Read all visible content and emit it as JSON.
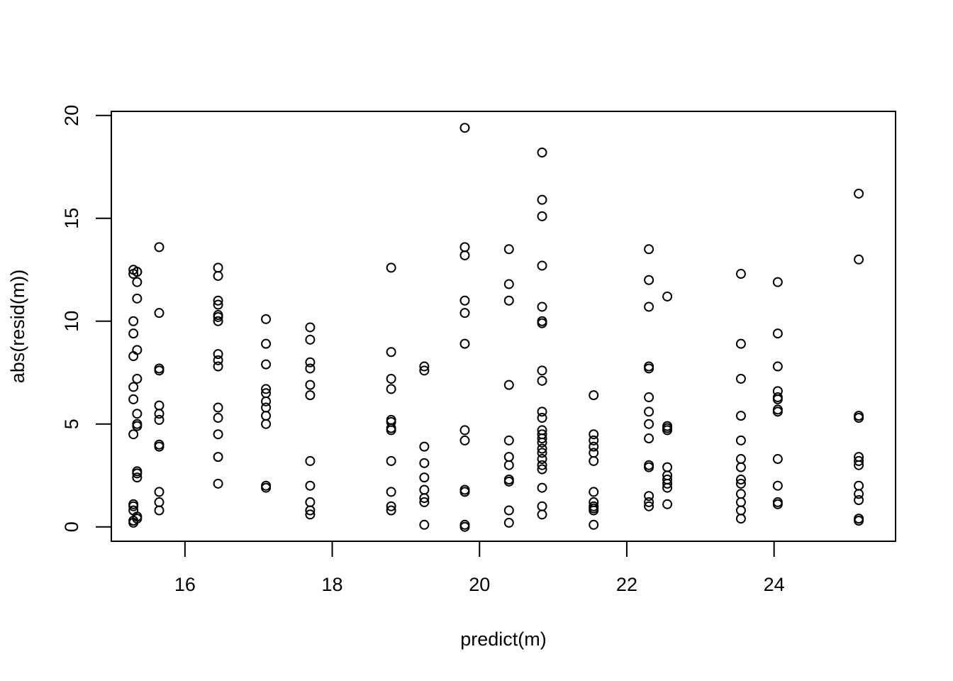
{
  "chart_data": {
    "type": "scatter",
    "xlabel": "predict(m)",
    "ylabel": "abs(resid(m))",
    "xlim": [
      15,
      25.65
    ],
    "ylim": [
      -0.7,
      20.2
    ],
    "x_ticks": [
      16,
      18,
      20,
      22,
      24
    ],
    "y_ticks": [
      0,
      5,
      10,
      15,
      20
    ],
    "grid": false,
    "legend": "none",
    "marker": "open-circle",
    "point_color": "#000000",
    "points": [
      [
        15.3,
        12.5
      ],
      [
        15.3,
        12.3
      ],
      [
        15.3,
        10.0
      ],
      [
        15.3,
        9.4
      ],
      [
        15.3,
        8.3
      ],
      [
        15.3,
        6.8
      ],
      [
        15.3,
        6.2
      ],
      [
        15.3,
        4.5
      ],
      [
        15.3,
        1.1
      ],
      [
        15.3,
        1.0
      ],
      [
        15.3,
        0.8
      ],
      [
        15.3,
        0.3
      ],
      [
        15.3,
        0.2
      ],
      [
        15.35,
        12.4
      ],
      [
        15.35,
        12.4
      ],
      [
        15.35,
        11.9
      ],
      [
        15.35,
        11.1
      ],
      [
        15.35,
        8.6
      ],
      [
        15.35,
        7.2
      ],
      [
        15.35,
        5.5
      ],
      [
        15.35,
        5.0
      ],
      [
        15.35,
        4.9
      ],
      [
        15.35,
        2.7
      ],
      [
        15.35,
        2.6
      ],
      [
        15.35,
        2.4
      ],
      [
        15.35,
        0.5
      ],
      [
        15.35,
        0.4
      ],
      [
        15.65,
        13.6
      ],
      [
        15.65,
        10.4
      ],
      [
        15.65,
        7.7
      ],
      [
        15.65,
        7.6
      ],
      [
        15.65,
        5.9
      ],
      [
        15.65,
        5.5
      ],
      [
        15.65,
        5.2
      ],
      [
        15.65,
        4.0
      ],
      [
        15.65,
        3.9
      ],
      [
        15.65,
        1.7
      ],
      [
        15.65,
        1.2
      ],
      [
        15.65,
        0.8
      ],
      [
        16.45,
        12.6
      ],
      [
        16.45,
        12.2
      ],
      [
        16.45,
        11.0
      ],
      [
        16.45,
        10.8
      ],
      [
        16.45,
        10.3
      ],
      [
        16.45,
        10.2
      ],
      [
        16.45,
        10.0
      ],
      [
        16.45,
        8.4
      ],
      [
        16.45,
        8.1
      ],
      [
        16.45,
        7.8
      ],
      [
        16.45,
        5.8
      ],
      [
        16.45,
        5.3
      ],
      [
        16.45,
        4.5
      ],
      [
        16.45,
        3.4
      ],
      [
        16.45,
        2.1
      ],
      [
        17.1,
        10.1
      ],
      [
        17.1,
        8.9
      ],
      [
        17.1,
        7.9
      ],
      [
        17.1,
        6.7
      ],
      [
        17.1,
        6.5
      ],
      [
        17.1,
        6.1
      ],
      [
        17.1,
        5.8
      ],
      [
        17.1,
        5.4
      ],
      [
        17.1,
        5.0
      ],
      [
        17.1,
        2.0
      ],
      [
        17.1,
        1.9
      ],
      [
        17.7,
        9.7
      ],
      [
        17.7,
        9.1
      ],
      [
        17.7,
        8.0
      ],
      [
        17.7,
        7.7
      ],
      [
        17.7,
        6.9
      ],
      [
        17.7,
        6.4
      ],
      [
        17.7,
        3.2
      ],
      [
        17.7,
        2.0
      ],
      [
        17.7,
        1.2
      ],
      [
        17.7,
        0.8
      ],
      [
        17.7,
        0.6
      ],
      [
        18.8,
        12.6
      ],
      [
        18.8,
        8.5
      ],
      [
        18.8,
        7.2
      ],
      [
        18.8,
        6.7
      ],
      [
        18.8,
        5.2
      ],
      [
        18.8,
        5.1
      ],
      [
        18.8,
        4.8
      ],
      [
        18.8,
        4.7
      ],
      [
        18.8,
        3.2
      ],
      [
        18.8,
        1.7
      ],
      [
        18.8,
        1.0
      ],
      [
        18.8,
        0.8
      ],
      [
        19.25,
        7.8
      ],
      [
        19.25,
        7.6
      ],
      [
        19.25,
        3.9
      ],
      [
        19.25,
        3.1
      ],
      [
        19.25,
        2.4
      ],
      [
        19.25,
        1.8
      ],
      [
        19.25,
        1.4
      ],
      [
        19.25,
        1.2
      ],
      [
        19.25,
        0.1
      ],
      [
        19.8,
        19.4
      ],
      [
        19.8,
        13.6
      ],
      [
        19.8,
        13.2
      ],
      [
        19.8,
        11.0
      ],
      [
        19.8,
        10.4
      ],
      [
        19.8,
        8.9
      ],
      [
        19.8,
        4.7
      ],
      [
        19.8,
        4.2
      ],
      [
        19.8,
        1.8
      ],
      [
        19.8,
        1.7
      ],
      [
        19.8,
        0.1
      ],
      [
        19.8,
        0.0
      ],
      [
        20.4,
        13.5
      ],
      [
        20.4,
        11.8
      ],
      [
        20.4,
        11.0
      ],
      [
        20.4,
        6.9
      ],
      [
        20.4,
        4.2
      ],
      [
        20.4,
        3.4
      ],
      [
        20.4,
        3.0
      ],
      [
        20.4,
        2.3
      ],
      [
        20.4,
        2.2
      ],
      [
        20.4,
        0.8
      ],
      [
        20.4,
        0.2
      ],
      [
        20.85,
        18.2
      ],
      [
        20.85,
        15.9
      ],
      [
        20.85,
        15.1
      ],
      [
        20.85,
        12.7
      ],
      [
        20.85,
        10.7
      ],
      [
        20.85,
        10.0
      ],
      [
        20.85,
        9.9
      ],
      [
        20.85,
        7.6
      ],
      [
        20.85,
        7.1
      ],
      [
        20.85,
        5.6
      ],
      [
        20.85,
        5.3
      ],
      [
        20.85,
        4.7
      ],
      [
        20.85,
        4.5
      ],
      [
        20.85,
        4.3
      ],
      [
        20.85,
        4.1
      ],
      [
        20.85,
        3.8
      ],
      [
        20.85,
        3.6
      ],
      [
        20.85,
        3.3
      ],
      [
        20.85,
        3.0
      ],
      [
        20.85,
        2.8
      ],
      [
        20.85,
        1.9
      ],
      [
        20.85,
        1.0
      ],
      [
        20.85,
        0.6
      ],
      [
        21.55,
        6.4
      ],
      [
        21.55,
        4.5
      ],
      [
        21.55,
        4.2
      ],
      [
        21.55,
        3.9
      ],
      [
        21.55,
        3.6
      ],
      [
        21.55,
        3.2
      ],
      [
        21.55,
        1.7
      ],
      [
        21.55,
        1.2
      ],
      [
        21.55,
        1.0
      ],
      [
        21.55,
        0.9
      ],
      [
        21.55,
        0.8
      ],
      [
        21.55,
        0.1
      ],
      [
        22.3,
        13.5
      ],
      [
        22.3,
        12.0
      ],
      [
        22.3,
        10.7
      ],
      [
        22.3,
        7.8
      ],
      [
        22.3,
        7.7
      ],
      [
        22.3,
        6.3
      ],
      [
        22.3,
        5.6
      ],
      [
        22.3,
        5.0
      ],
      [
        22.3,
        4.3
      ],
      [
        22.3,
        3.0
      ],
      [
        22.3,
        2.9
      ],
      [
        22.3,
        1.5
      ],
      [
        22.3,
        1.2
      ],
      [
        22.3,
        1.0
      ],
      [
        22.55,
        11.2
      ],
      [
        22.55,
        4.9
      ],
      [
        22.55,
        4.8
      ],
      [
        22.55,
        4.7
      ],
      [
        22.55,
        2.9
      ],
      [
        22.55,
        2.5
      ],
      [
        22.55,
        2.3
      ],
      [
        22.55,
        2.1
      ],
      [
        22.55,
        1.9
      ],
      [
        22.55,
        1.1
      ],
      [
        23.55,
        12.3
      ],
      [
        23.55,
        8.9
      ],
      [
        23.55,
        7.2
      ],
      [
        23.55,
        5.4
      ],
      [
        23.55,
        4.2
      ],
      [
        23.55,
        3.3
      ],
      [
        23.55,
        2.9
      ],
      [
        23.55,
        2.3
      ],
      [
        23.55,
        2.1
      ],
      [
        23.55,
        1.6
      ],
      [
        23.55,
        1.2
      ],
      [
        23.55,
        0.8
      ],
      [
        23.55,
        0.4
      ],
      [
        24.05,
        11.9
      ],
      [
        24.05,
        9.4
      ],
      [
        24.05,
        7.8
      ],
      [
        24.05,
        6.6
      ],
      [
        24.05,
        6.3
      ],
      [
        24.05,
        6.2
      ],
      [
        24.05,
        5.7
      ],
      [
        24.05,
        5.6
      ],
      [
        24.05,
        3.3
      ],
      [
        24.05,
        2.0
      ],
      [
        24.05,
        1.2
      ],
      [
        24.05,
        1.1
      ],
      [
        25.15,
        16.2
      ],
      [
        25.15,
        13.0
      ],
      [
        25.15,
        5.4
      ],
      [
        25.15,
        5.3
      ],
      [
        25.15,
        3.4
      ],
      [
        25.15,
        3.2
      ],
      [
        25.15,
        3.0
      ],
      [
        25.15,
        2.0
      ],
      [
        25.15,
        1.6
      ],
      [
        25.15,
        1.3
      ],
      [
        25.15,
        0.4
      ],
      [
        25.15,
        0.3
      ]
    ]
  }
}
